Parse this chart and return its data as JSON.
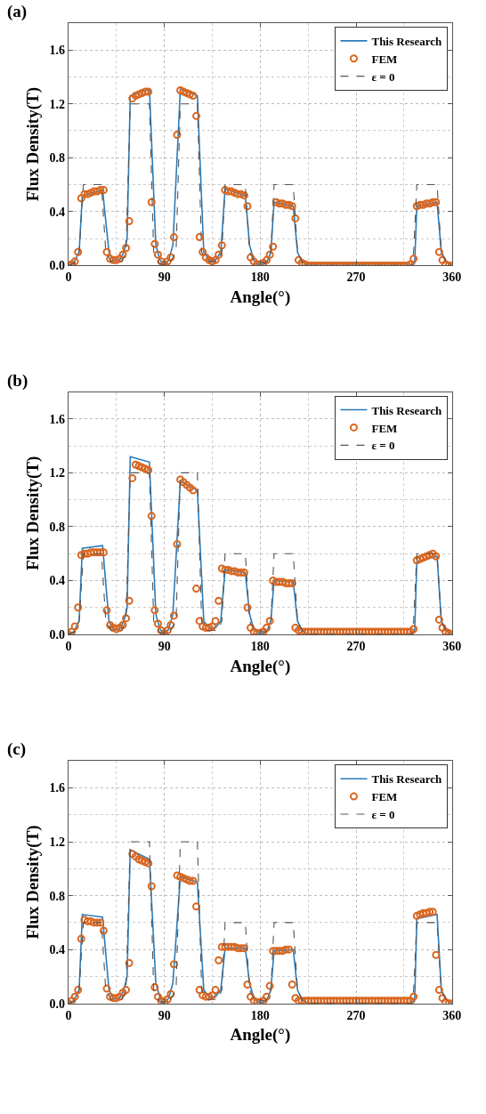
{
  "chart_data": [
    {
      "type": "line",
      "title": "(a)",
      "xlabel": "Angle(°)",
      "ylabel": "Flux Density(T)",
      "xlim": [
        0,
        360
      ],
      "xticks": [
        0,
        90,
        180,
        270,
        360
      ],
      "ylim": [
        0,
        1.8
      ],
      "yticks": [
        {
          "value": 0,
          "label": "0.0"
        },
        {
          "value": 0.4,
          "label": "0.4"
        },
        {
          "value": 0.8,
          "label": "0.8"
        },
        {
          "value": 1.2,
          "label": "1.2"
        },
        {
          "value": 1.6,
          "label": "1.6"
        }
      ],
      "grid": true,
      "legend": "top right",
      "series": [
        {
          "name": "This Research",
          "color": "#2b7bb9",
          "line_style": "solid",
          "x": [
            0,
            5,
            10,
            13,
            32,
            38,
            42,
            48,
            52,
            55,
            58,
            76,
            82,
            86,
            90,
            94,
            98,
            105,
            121,
            127,
            132,
            138,
            143,
            147,
            166,
            170,
            174,
            180,
            186,
            190,
            193,
            211,
            215,
            219,
            225,
            323,
            325,
            327,
            346,
            350,
            354,
            360
          ],
          "values": [
            0,
            0.02,
            0.1,
            0.52,
            0.56,
            0.1,
            0.04,
            0.04,
            0.1,
            0.2,
            1.26,
            1.31,
            0.15,
            0.04,
            0,
            0.04,
            0.15,
            1.31,
            1.26,
            0.1,
            0.04,
            0.04,
            0.1,
            0.57,
            0.52,
            0.15,
            0.04,
            0,
            0.02,
            0.1,
            0.47,
            0.44,
            0.1,
            0.03,
            0,
            0,
            0.02,
            0.44,
            0.47,
            0.1,
            0.03,
            0
          ]
        },
        {
          "name": "FEM",
          "type": "scatter",
          "marker": "circle",
          "color": "#d9661f",
          "x": [
            0,
            3,
            6,
            9,
            12,
            15,
            18,
            21,
            24,
            27,
            30,
            33,
            36,
            39,
            42,
            45,
            48,
            51,
            54,
            57,
            60,
            63,
            66,
            69,
            72,
            75,
            78,
            81,
            84,
            87,
            90,
            93,
            96,
            99,
            102,
            105,
            108,
            111,
            114,
            117,
            120,
            123,
            126,
            129,
            132,
            135,
            138,
            141,
            144,
            147,
            150,
            153,
            156,
            159,
            162,
            165,
            168,
            171,
            174,
            177,
            180,
            183,
            186,
            189,
            192,
            195,
            198,
            201,
            204,
            207,
            210,
            213,
            216,
            219,
            222,
            225,
            228,
            231,
            234,
            237,
            240,
            243,
            246,
            249,
            252,
            255,
            258,
            261,
            264,
            267,
            270,
            273,
            276,
            279,
            282,
            285,
            288,
            291,
            294,
            297,
            300,
            303,
            306,
            309,
            312,
            315,
            318,
            321,
            324,
            327,
            330,
            333,
            336,
            339,
            342,
            345,
            348,
            351,
            354,
            357,
            360
          ],
          "values": [
            0,
            0.01,
            0.03,
            0.1,
            0.5,
            0.53,
            0.53,
            0.54,
            0.55,
            0.55,
            0.56,
            0.56,
            0.1,
            0.05,
            0.04,
            0.04,
            0.05,
            0.08,
            0.13,
            0.33,
            1.24,
            1.26,
            1.27,
            1.28,
            1.29,
            1.29,
            0.47,
            0.16,
            0.08,
            0.03,
            0.01,
            0.03,
            0.06,
            0.21,
            0.97,
            1.3,
            1.29,
            1.28,
            1.27,
            1.26,
            1.11,
            0.21,
            0.1,
            0.06,
            0.04,
            0.03,
            0.04,
            0.08,
            0.15,
            0.56,
            0.55,
            0.55,
            0.54,
            0.53,
            0.53,
            0.52,
            0.44,
            0.06,
            0.03,
            0.01,
            0.01,
            0.02,
            0.04,
            0.08,
            0.14,
            0.47,
            0.46,
            0.46,
            0.45,
            0.45,
            0.44,
            0.35,
            0.04,
            0.02,
            0.01,
            0,
            0,
            0,
            0,
            0,
            0,
            0,
            0,
            0,
            0,
            0,
            0,
            0,
            0,
            0,
            0,
            0,
            0,
            0,
            0,
            0,
            0,
            0,
            0,
            0,
            0,
            0,
            0,
            0,
            0,
            0,
            0,
            0.01,
            0.05,
            0.44,
            0.45,
            0.45,
            0.46,
            0.46,
            0.47,
            0.47,
            0.1,
            0.04,
            0.01,
            0,
            0
          ]
        },
        {
          "name": "ε = 0",
          "type": "line",
          "color": "#555555",
          "line_style": "dashed",
          "x": [
            0,
            6,
            10,
            14,
            31,
            35,
            40,
            50,
            54,
            58,
            76,
            80,
            85,
            90,
            95,
            101,
            105,
            121,
            125,
            130,
            140,
            144,
            147,
            166,
            170,
            175,
            185,
            190,
            193,
            211,
            215,
            220,
            225,
            322,
            324,
            327,
            346,
            350,
            355,
            360
          ],
          "values": [
            0,
            0.02,
            0.1,
            0.6,
            0.6,
            0.1,
            0.03,
            0.03,
            0.1,
            1.2,
            1.2,
            0.1,
            0.02,
            0,
            0.02,
            0.1,
            1.2,
            1.2,
            0.1,
            0.03,
            0.03,
            0.1,
            0.6,
            0.6,
            0.1,
            0.02,
            0.02,
            0.1,
            0.6,
            0.6,
            0.1,
            0.02,
            0,
            0,
            0.1,
            0.6,
            0.6,
            0.1,
            0.02,
            0
          ]
        }
      ]
    },
    {
      "type": "line",
      "title": "(b)",
      "xlabel": "Angle(°)",
      "ylabel": "Flux Density(T)",
      "xlim": [
        0,
        360
      ],
      "xticks": [
        0,
        90,
        180,
        270,
        360
      ],
      "ylim": [
        0,
        1.8
      ],
      "yticks": [
        {
          "value": 0,
          "label": "0.0"
        },
        {
          "value": 0.4,
          "label": "0.4"
        },
        {
          "value": 0.8,
          "label": "0.8"
        },
        {
          "value": 1.2,
          "label": "1.2"
        },
        {
          "value": 1.6,
          "label": "1.6"
        }
      ],
      "grid": true,
      "legend": "top right",
      "series": [
        {
          "name": "This Research",
          "color": "#2b7bb9",
          "line_style": "solid",
          "x": [
            0,
            5,
            10,
            13,
            32,
            38,
            42,
            48,
            52,
            55,
            58,
            76,
            82,
            86,
            90,
            94,
            98,
            105,
            121,
            127,
            132,
            138,
            143,
            147,
            166,
            170,
            174,
            180,
            186,
            190,
            193,
            211,
            215,
            219,
            225,
            323,
            325,
            327,
            346,
            350,
            354,
            360
          ],
          "values": [
            0,
            0.02,
            0.1,
            0.64,
            0.66,
            0.1,
            0.04,
            0.04,
            0.1,
            0.2,
            1.32,
            1.28,
            0.15,
            0.04,
            0,
            0.04,
            0.15,
            1.14,
            1.07,
            0.1,
            0.05,
            0.05,
            0.1,
            0.48,
            0.46,
            0.15,
            0.04,
            0,
            0.02,
            0.1,
            0.4,
            0.39,
            0.1,
            0.03,
            0,
            0,
            0.02,
            0.54,
            0.58,
            0.1,
            0.03,
            0
          ]
        },
        {
          "name": "FEM",
          "type": "scatter",
          "marker": "circle",
          "color": "#d9661f",
          "x": [
            0,
            3,
            6,
            9,
            12,
            15,
            18,
            21,
            24,
            27,
            30,
            33,
            36,
            39,
            42,
            45,
            48,
            51,
            54,
            57,
            60,
            63,
            66,
            69,
            72,
            75,
            78,
            81,
            84,
            87,
            90,
            93,
            96,
            99,
            102,
            105,
            108,
            111,
            114,
            117,
            120,
            123,
            126,
            129,
            132,
            135,
            138,
            141,
            144,
            147,
            150,
            153,
            156,
            159,
            162,
            165,
            168,
            171,
            174,
            177,
            180,
            183,
            186,
            189,
            192,
            195,
            198,
            201,
            204,
            207,
            210,
            213,
            216,
            219,
            222,
            225,
            228,
            231,
            234,
            237,
            240,
            243,
            246,
            249,
            252,
            255,
            258,
            261,
            264,
            267,
            270,
            273,
            276,
            279,
            282,
            285,
            288,
            291,
            294,
            297,
            300,
            303,
            306,
            309,
            312,
            315,
            318,
            321,
            324,
            327,
            330,
            333,
            336,
            339,
            342,
            345,
            348,
            351,
            354,
            357,
            360
          ],
          "values": [
            0,
            0.02,
            0.06,
            0.2,
            0.59,
            0.6,
            0.6,
            0.61,
            0.61,
            0.61,
            0.61,
            0.61,
            0.18,
            0.07,
            0.05,
            0.04,
            0.05,
            0.07,
            0.12,
            0.25,
            1.16,
            1.26,
            1.25,
            1.24,
            1.23,
            1.22,
            0.88,
            0.18,
            0.08,
            0.03,
            0.01,
            0.03,
            0.07,
            0.14,
            0.67,
            1.15,
            1.13,
            1.11,
            1.09,
            1.07,
            0.34,
            0.1,
            0.06,
            0.05,
            0.05,
            0.06,
            0.1,
            0.25,
            0.49,
            0.48,
            0.48,
            0.47,
            0.47,
            0.46,
            0.46,
            0.46,
            0.2,
            0.05,
            0.02,
            0.01,
            0.01,
            0.02,
            0.05,
            0.1,
            0.4,
            0.39,
            0.39,
            0.39,
            0.38,
            0.38,
            0.38,
            0.05,
            0.03,
            0.02,
            0.02,
            0.02,
            0.02,
            0.02,
            0.02,
            0.02,
            0.02,
            0.02,
            0.02,
            0.02,
            0.02,
            0.02,
            0.02,
            0.02,
            0.02,
            0.02,
            0.02,
            0.02,
            0.02,
            0.02,
            0.02,
            0.02,
            0.02,
            0.02,
            0.02,
            0.02,
            0.02,
            0.02,
            0.02,
            0.02,
            0.02,
            0.02,
            0.02,
            0.02,
            0.04,
            0.55,
            0.56,
            0.57,
            0.58,
            0.59,
            0.6,
            0.58,
            0.11,
            0.05,
            0.02,
            0.01,
            0
          ]
        },
        {
          "name": "ε = 0",
          "type": "line",
          "color": "#555555",
          "line_style": "dashed",
          "x": [
            0,
            6,
            10,
            14,
            31,
            35,
            40,
            50,
            54,
            58,
            76,
            80,
            85,
            90,
            95,
            101,
            105,
            121,
            125,
            130,
            140,
            144,
            147,
            166,
            170,
            175,
            185,
            190,
            193,
            211,
            215,
            220,
            225,
            322,
            324,
            327,
            346,
            350,
            355,
            360
          ],
          "values": [
            0,
            0.02,
            0.1,
            0.6,
            0.6,
            0.1,
            0.03,
            0.03,
            0.1,
            1.2,
            1.2,
            0.1,
            0.02,
            0,
            0.02,
            0.1,
            1.2,
            1.2,
            0.1,
            0.03,
            0.03,
            0.1,
            0.6,
            0.6,
            0.1,
            0.02,
            0.02,
            0.1,
            0.6,
            0.6,
            0.1,
            0.02,
            0,
            0,
            0.1,
            0.6,
            0.6,
            0.1,
            0.02,
            0
          ]
        }
      ]
    },
    {
      "type": "line",
      "title": "(c)",
      "xlabel": "Angle(°)",
      "ylabel": "Flux Density(T)",
      "xlim": [
        0,
        360
      ],
      "xticks": [
        0,
        90,
        180,
        270,
        360
      ],
      "ylim": [
        0,
        1.8
      ],
      "yticks": [
        {
          "value": 0,
          "label": "0.0"
        },
        {
          "value": 0.4,
          "label": "0.4"
        },
        {
          "value": 0.8,
          "label": "0.8"
        },
        {
          "value": 1.2,
          "label": "1.2"
        },
        {
          "value": 1.6,
          "label": "1.6"
        }
      ],
      "grid": true,
      "legend": "top right",
      "series": [
        {
          "name": "This Research",
          "color": "#2b7bb9",
          "line_style": "solid",
          "x": [
            0,
            5,
            10,
            13,
            32,
            38,
            42,
            48,
            52,
            55,
            58,
            76,
            82,
            86,
            90,
            94,
            98,
            105,
            121,
            127,
            132,
            138,
            143,
            147,
            166,
            170,
            174,
            180,
            186,
            190,
            193,
            211,
            215,
            219,
            225,
            323,
            325,
            327,
            346,
            350,
            354,
            360
          ],
          "values": [
            0,
            0.02,
            0.1,
            0.66,
            0.64,
            0.1,
            0.04,
            0.04,
            0.1,
            0.2,
            1.14,
            1.07,
            0.15,
            0.04,
            0,
            0.04,
            0.15,
            0.94,
            0.9,
            0.1,
            0.05,
            0.05,
            0.1,
            0.41,
            0.41,
            0.15,
            0.04,
            0,
            0.02,
            0.1,
            0.39,
            0.4,
            0.1,
            0.03,
            0,
            0,
            0.02,
            0.63,
            0.66,
            0.1,
            0.03,
            0
          ]
        },
        {
          "name": "FEM",
          "type": "scatter",
          "marker": "circle",
          "color": "#d9661f",
          "x": [
            0,
            3,
            6,
            9,
            12,
            15,
            18,
            21,
            24,
            27,
            30,
            33,
            36,
            39,
            42,
            45,
            48,
            51,
            54,
            57,
            60,
            63,
            66,
            69,
            72,
            75,
            78,
            81,
            84,
            87,
            90,
            93,
            96,
            99,
            102,
            105,
            108,
            111,
            114,
            117,
            120,
            123,
            126,
            129,
            132,
            135,
            138,
            141,
            144,
            147,
            150,
            153,
            156,
            159,
            162,
            165,
            168,
            171,
            174,
            177,
            180,
            183,
            186,
            189,
            192,
            195,
            198,
            201,
            204,
            207,
            210,
            213,
            216,
            219,
            222,
            225,
            228,
            231,
            234,
            237,
            240,
            243,
            246,
            249,
            252,
            255,
            258,
            261,
            264,
            267,
            270,
            273,
            276,
            279,
            282,
            285,
            288,
            291,
            294,
            297,
            300,
            303,
            306,
            309,
            312,
            315,
            318,
            321,
            324,
            327,
            330,
            333,
            336,
            339,
            342,
            345,
            348,
            351,
            354,
            357,
            360
          ],
          "values": [
            0,
            0.02,
            0.05,
            0.1,
            0.48,
            0.62,
            0.61,
            0.61,
            0.6,
            0.6,
            0.6,
            0.54,
            0.11,
            0.05,
            0.04,
            0.04,
            0.05,
            0.08,
            0.1,
            0.3,
            1.11,
            1.09,
            1.07,
            1.06,
            1.05,
            1.04,
            0.87,
            0.12,
            0.05,
            0.02,
            0.01,
            0.03,
            0.07,
            0.29,
            0.95,
            0.94,
            0.93,
            0.92,
            0.91,
            0.91,
            0.72,
            0.1,
            0.06,
            0.05,
            0.05,
            0.06,
            0.1,
            0.32,
            0.42,
            0.42,
            0.42,
            0.42,
            0.42,
            0.41,
            0.41,
            0.41,
            0.14,
            0.05,
            0.02,
            0.01,
            0.01,
            0.02,
            0.05,
            0.13,
            0.39,
            0.39,
            0.39,
            0.39,
            0.4,
            0.4,
            0.14,
            0.04,
            0.02,
            0.02,
            0.02,
            0.02,
            0.02,
            0.02,
            0.02,
            0.02,
            0.02,
            0.02,
            0.02,
            0.02,
            0.02,
            0.02,
            0.02,
            0.02,
            0.02,
            0.02,
            0.02,
            0.02,
            0.02,
            0.02,
            0.02,
            0.02,
            0.02,
            0.02,
            0.02,
            0.02,
            0.02,
            0.02,
            0.02,
            0.02,
            0.02,
            0.02,
            0.02,
            0.02,
            0.05,
            0.65,
            0.66,
            0.67,
            0.67,
            0.68,
            0.68,
            0.36,
            0.1,
            0.04,
            0.01,
            0,
            0
          ]
        },
        {
          "name": "ε = 0",
          "type": "line",
          "color": "#555555",
          "line_style": "dashed",
          "x": [
            0,
            6,
            10,
            14,
            31,
            35,
            40,
            50,
            54,
            58,
            76,
            80,
            85,
            90,
            95,
            101,
            105,
            121,
            125,
            130,
            140,
            144,
            147,
            166,
            170,
            175,
            185,
            190,
            193,
            211,
            215,
            220,
            225,
            322,
            324,
            327,
            346,
            350,
            355,
            360
          ],
          "values": [
            0,
            0.02,
            0.1,
            0.6,
            0.6,
            0.1,
            0.03,
            0.03,
            0.1,
            1.2,
            1.2,
            0.1,
            0.02,
            0,
            0.02,
            0.1,
            1.2,
            1.2,
            0.1,
            0.03,
            0.03,
            0.1,
            0.6,
            0.6,
            0.1,
            0.02,
            0.02,
            0.1,
            0.6,
            0.6,
            0.1,
            0.02,
            0,
            0,
            0.1,
            0.6,
            0.6,
            0.1,
            0.02,
            0
          ]
        }
      ]
    }
  ]
}
